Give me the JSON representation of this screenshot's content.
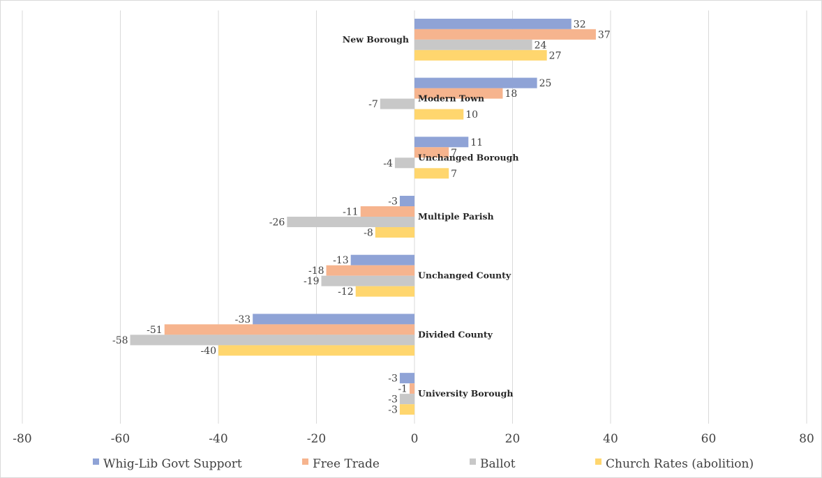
{
  "chart_data": {
    "type": "bar",
    "orientation": "horizontal",
    "title": "",
    "xlabel": "",
    "ylabel": "",
    "xlim": [
      -80,
      80
    ],
    "xticks": [
      -80,
      -60,
      -40,
      -20,
      0,
      20,
      40,
      60,
      80
    ],
    "grid": "vertical",
    "legend_position": "bottom",
    "categories": [
      "New Borough",
      "Modern Town",
      "Unchanged Borough",
      "Multiple Parish",
      "Unchanged County",
      "Divided County",
      "University Borough"
    ],
    "series": [
      {
        "name": "Whig-Lib Govt Support",
        "color": "#8FA3D6",
        "values": [
          32,
          25,
          11,
          -3,
          -13,
          -33,
          -3
        ]
      },
      {
        "name": "Free Trade",
        "color": "#F6B48E",
        "values": [
          37,
          18,
          7,
          -11,
          -18,
          -51,
          -1
        ]
      },
      {
        "name": "Ballot",
        "color": "#C8C8C8",
        "values": [
          24,
          -7,
          -4,
          -26,
          -19,
          -58,
          -3
        ]
      },
      {
        "name": "Church Rates (abolition)",
        "color": "#FFD66E",
        "values": [
          27,
          10,
          7,
          -8,
          -12,
          -40,
          -3
        ]
      }
    ]
  }
}
